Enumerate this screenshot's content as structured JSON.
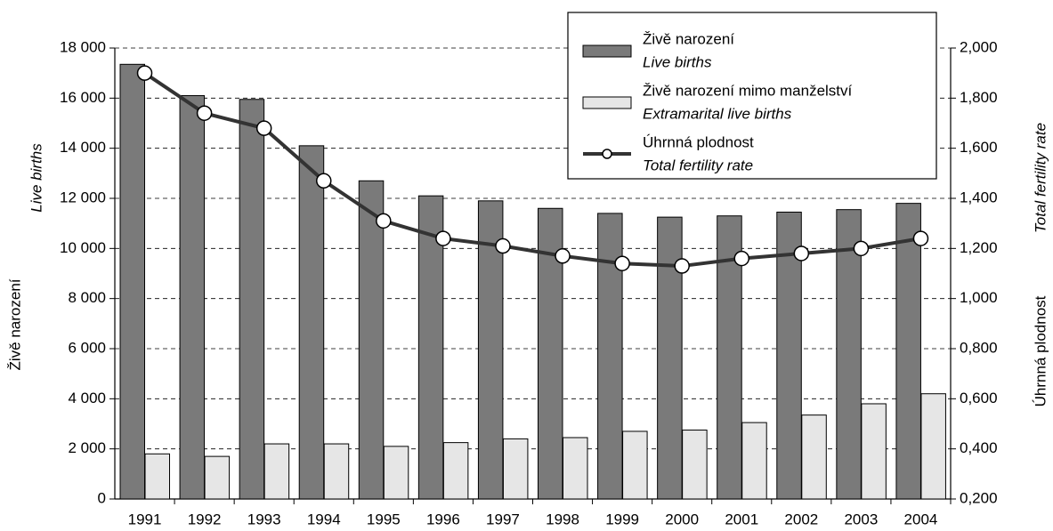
{
  "chart_data": {
    "type": "bar_line",
    "y_label": "Živě narození",
    "y_label_en": "Live births",
    "y2_label": "Úhrnná plodnost",
    "y2_label_en": "Total fertility rate",
    "categories": [
      "1991",
      "1992",
      "1993",
      "1994",
      "1995",
      "1996",
      "1997",
      "1998",
      "1999",
      "2000",
      "2001",
      "2002",
      "2003",
      "2004"
    ],
    "series": [
      {
        "name": "Živě narození",
        "name_en": "Live births",
        "type": "bar",
        "color": "#7a7a7a",
        "values": [
          17350,
          16100,
          15950,
          14100,
          12700,
          12100,
          11900,
          11600,
          11400,
          11250,
          11300,
          11450,
          11550,
          11800
        ]
      },
      {
        "name": "Živě narození mimo manželství",
        "name_en": "Extramarital live births",
        "type": "bar",
        "color": "#e6e6e6",
        "values": [
          1800,
          1700,
          2200,
          2200,
          2100,
          2250,
          2400,
          2450,
          2700,
          2750,
          3050,
          3350,
          3800,
          4200
        ]
      },
      {
        "name": "Úhrnná plodnost",
        "name_en": "Total fertility rate",
        "type": "line",
        "axis": "y2",
        "color": "#333333",
        "values": [
          1.9,
          1.74,
          1.68,
          1.47,
          1.31,
          1.24,
          1.21,
          1.17,
          1.14,
          1.13,
          1.16,
          1.18,
          1.2,
          1.24
        ]
      }
    ],
    "ylim": [
      0,
      18000
    ],
    "yticks": [
      0,
      {
        "value": 2000,
        "label": "2 000"
      },
      {
        "value": 4000,
        "label": "4 000"
      },
      {
        "value": 6000,
        "label": "6 000"
      },
      {
        "value": 8000,
        "label": "8 000"
      },
      {
        "value": 10000,
        "label": "10 000"
      },
      {
        "value": 12000,
        "label": "12 000"
      },
      {
        "value": 14000,
        "label": "14 000"
      },
      {
        "value": 16000,
        "label": "16 000"
      },
      {
        "value": 18000,
        "label": "18 000"
      }
    ],
    "y2lim": [
      0.2,
      2.0
    ],
    "y2ticks": [
      {
        "value": 0.2,
        "label": "0,200"
      },
      {
        "value": 0.4,
        "label": "0,400"
      },
      {
        "value": 0.6,
        "label": "0,600"
      },
      {
        "value": 0.8,
        "label": "0,800"
      },
      {
        "value": 1.0,
        "label": "1,000"
      },
      {
        "value": 1.2,
        "label": "1,200"
      },
      {
        "value": 1.4,
        "label": "1,400"
      },
      {
        "value": 1.6,
        "label": "1,600"
      },
      {
        "value": 1.8,
        "label": "1,800"
      },
      {
        "value": 2.0,
        "label": "2,000"
      }
    ],
    "grid": true
  }
}
